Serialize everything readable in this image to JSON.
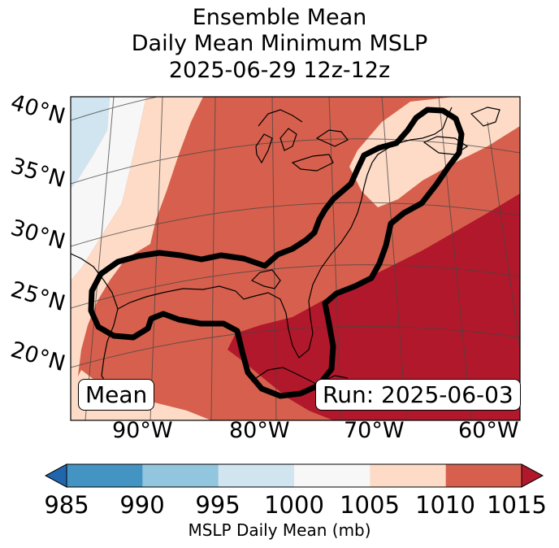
{
  "title": {
    "line1": "Ensemble Mean",
    "line2": "Daily Mean Minimum MSLP",
    "line3": "2025-06-29 12z-12z"
  },
  "map": {
    "lat_labels": [
      "40°N",
      "35°N",
      "30°N",
      "25°N",
      "20°N"
    ],
    "lon_labels": [
      "90°W",
      "80°W",
      "70°W",
      "60°W"
    ],
    "mean_box": "Mean",
    "run_box": "Run: 2025-06-03"
  },
  "colorbar": {
    "ticks": [
      "985",
      "990",
      "995",
      "1000",
      "1005",
      "1010",
      "1015"
    ],
    "label": "MSLP Daily Mean (mb)",
    "colors": [
      "#2166ac",
      "#4393c3",
      "#92c5de",
      "#d1e5f0",
      "#f7f7f7",
      "#fddbc7",
      "#d6604d",
      "#b2182b"
    ]
  },
  "fills": {
    "pale_blue": "#d1e5f0",
    "near_white": "#f7f7f7",
    "light_peach": "#fddbc7",
    "medium_red": "#d6604d",
    "dark_red": "#b2182b"
  }
}
